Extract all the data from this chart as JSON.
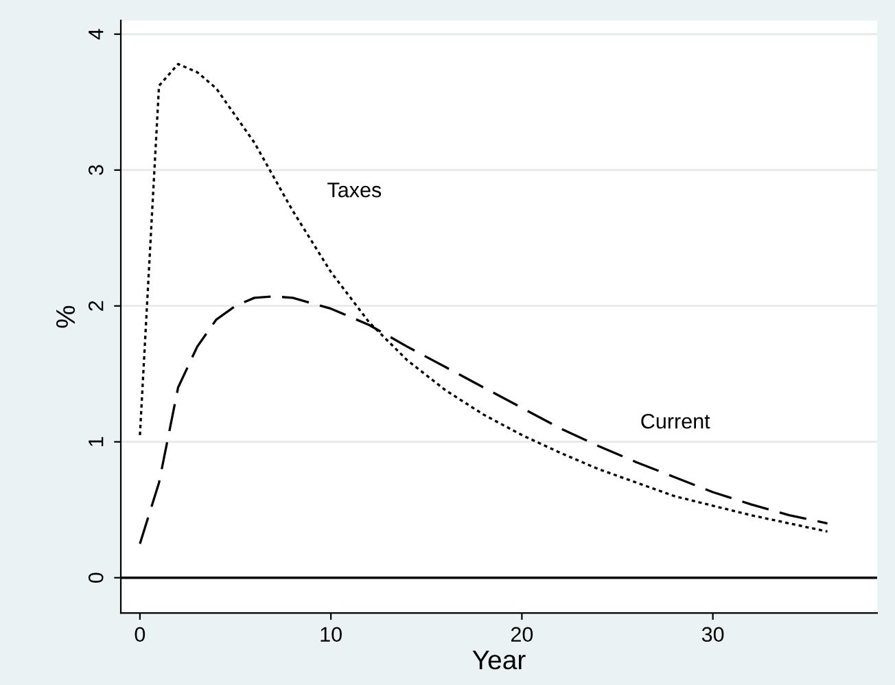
{
  "chart_data": {
    "type": "line",
    "xlabel": "Year",
    "ylabel": "%",
    "xlim": [
      -1,
      38.6
    ],
    "ylim": [
      -0.26,
      4.1
    ],
    "xticks": [
      0,
      10,
      20,
      30
    ],
    "yticks": [
      0,
      1,
      2,
      3,
      4
    ],
    "grid": "y",
    "legend": false,
    "series": [
      {
        "name": "Taxes",
        "color": "#000000",
        "line_style": "dotted",
        "x": [
          0,
          1,
          2,
          3,
          4,
          5,
          6,
          8,
          10,
          12,
          14,
          16,
          18,
          20,
          22,
          24,
          26,
          28,
          30,
          32,
          34,
          36
        ],
        "values": [
          1.05,
          3.62,
          3.78,
          3.72,
          3.6,
          3.4,
          3.2,
          2.7,
          2.25,
          1.88,
          1.6,
          1.38,
          1.2,
          1.05,
          0.92,
          0.8,
          0.7,
          0.6,
          0.53,
          0.46,
          0.4,
          0.34
        ]
      },
      {
        "name": "Current",
        "color": "#000000",
        "line_style": "dashed",
        "x": [
          0,
          1,
          2,
          3,
          4,
          5,
          6,
          7,
          8,
          10,
          12,
          14,
          16,
          18,
          20,
          22,
          24,
          26,
          28,
          30,
          32,
          34,
          36
        ],
        "values": [
          0.25,
          0.7,
          1.4,
          1.7,
          1.9,
          2.0,
          2.06,
          2.07,
          2.06,
          1.98,
          1.86,
          1.7,
          1.55,
          1.4,
          1.25,
          1.1,
          0.97,
          0.85,
          0.74,
          0.63,
          0.54,
          0.46,
          0.4
        ]
      }
    ],
    "ref_lines": [
      {
        "axis": "y",
        "value": 0,
        "color": "#000000",
        "line_style": "solid"
      }
    ]
  }
}
